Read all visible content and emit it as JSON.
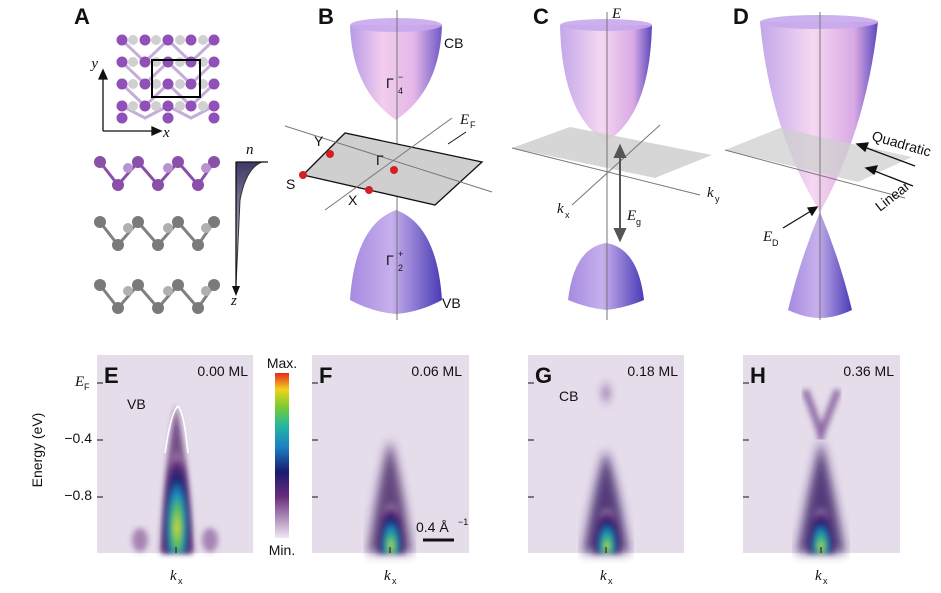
{
  "panels_top": [
    {
      "id": "A",
      "label": "A"
    },
    {
      "id": "B",
      "label": "B"
    },
    {
      "id": "C",
      "label": "C"
    },
    {
      "id": "D",
      "label": "D"
    }
  ],
  "panelA": {
    "x_axis": "x",
    "y_axis": "y",
    "depth_axis": "z",
    "density_label": "n"
  },
  "panelB": {
    "cb": "CB",
    "vb": "VB",
    "gamma": "Γ",
    "gamma_cb_sup": "−",
    "gamma_cb_sub": "4",
    "gamma_vb_sup": "+",
    "gamma_vb_sub": "2",
    "ef": "E",
    "ef_sub": "F",
    "pt_Y": "Y",
    "pt_X": "X",
    "pt_S": "S"
  },
  "panelC": {
    "energy": "E",
    "kx": "k",
    "kx_sub": "x",
    "ky": "k",
    "ky_sub": "y",
    "eg": "E",
    "eg_sub": "g"
  },
  "panelD": {
    "quadratic": "Quadratic",
    "linear": "Linear",
    "ed": "E",
    "ed_sub": "D"
  },
  "panels_bottom": [
    {
      "id": "E",
      "label": "E",
      "coverage": "0.00 ML",
      "xlabel": "k",
      "xlabel_sub": "x"
    },
    {
      "id": "F",
      "label": "F",
      "coverage": "0.06 ML",
      "xlabel": "k",
      "xlabel_sub": "x"
    },
    {
      "id": "G",
      "label": "G",
      "coverage": "0.18 ML",
      "xlabel": "k",
      "xlabel_sub": "x",
      "band_label": "CB"
    },
    {
      "id": "H",
      "label": "H",
      "coverage": "0.36 ML",
      "xlabel": "k",
      "xlabel_sub": "x"
    }
  ],
  "panelE_extra": {
    "vb": "VB"
  },
  "energy_axis": {
    "ylabel": "Energy (eV)",
    "ticks": [
      {
        "label": "E",
        "sub": "F",
        "value": 0.0
      },
      {
        "label": "−0.4",
        "value": -0.4
      },
      {
        "label": "−0.8",
        "value": -0.8
      }
    ]
  },
  "colorbar": {
    "max": "Max.",
    "min": "Min."
  },
  "scalebar": {
    "label": "0.4 Å",
    "sup": "−1"
  },
  "colors": {
    "cone_purple": "#9b7fd6",
    "cone_pink": "#f3c8ea",
    "plane_gray": "#c9c9c9",
    "point_red": "#d41f2a",
    "atom_purple": "#9050b8",
    "atom_gray": "#909090",
    "arpes_bg": "#e6ddeb"
  }
}
